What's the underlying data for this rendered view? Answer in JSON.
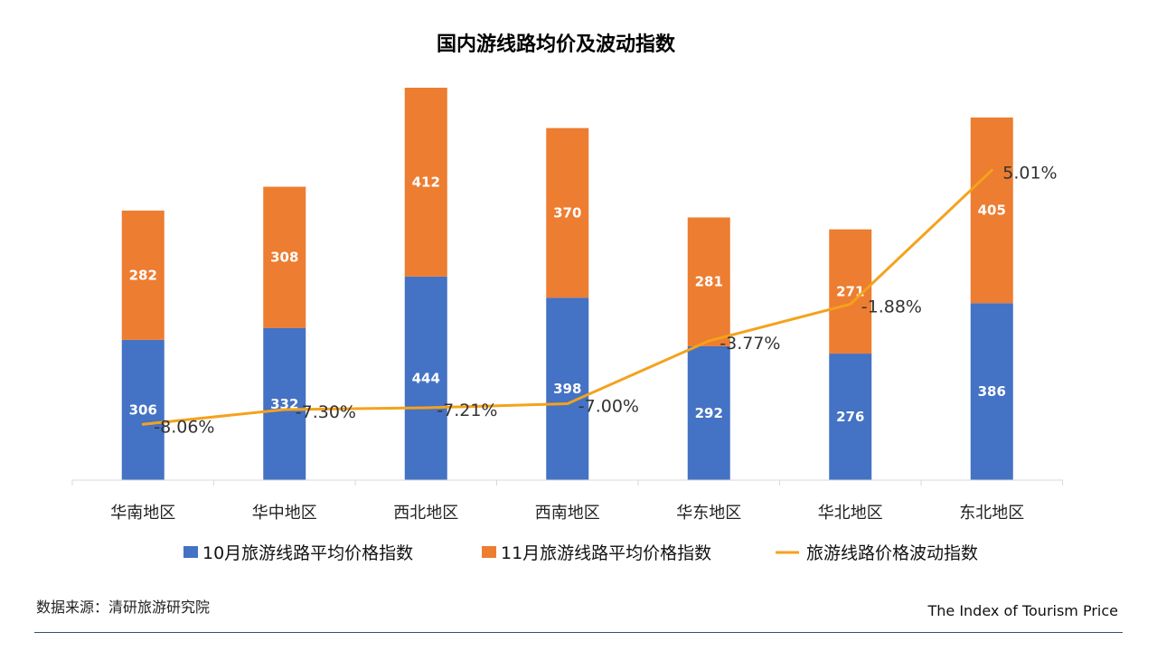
{
  "chart_data": {
    "type": "bar",
    "stacked": true,
    "title": "国内游线路均价及波动指数",
    "categories": [
      "华南地区",
      "华中地区",
      "西北地区",
      "西南地区",
      "华东地区",
      "华北地区",
      "东北地区"
    ],
    "series": [
      {
        "name": "10月旅游线路平均价格指数",
        "type": "bar",
        "color": "#4472c4",
        "values": [
          306,
          332,
          444,
          398,
          292,
          276,
          386
        ]
      },
      {
        "name": "11月旅游线路平均价格指数",
        "type": "bar",
        "color": "#ed7d31",
        "values": [
          282,
          308,
          412,
          370,
          281,
          271,
          405
        ]
      },
      {
        "name": "旅游线路价格波动指数",
        "type": "line",
        "color": "#f4a21c",
        "values": [
          -8.06,
          -7.3,
          -7.21,
          -7.0,
          -3.77,
          -1.88,
          5.01
        ],
        "labels": [
          "-8.06%",
          "-7.30%",
          "-7.21%",
          "-7.00%",
          "-3.77%",
          "-1.88%",
          "5.01%"
        ]
      }
    ],
    "legend": "bottom",
    "grid": false
  },
  "footer": {
    "source": "数据来源：清研旅游研究院",
    "brand": "The Index of Tourism Price"
  }
}
